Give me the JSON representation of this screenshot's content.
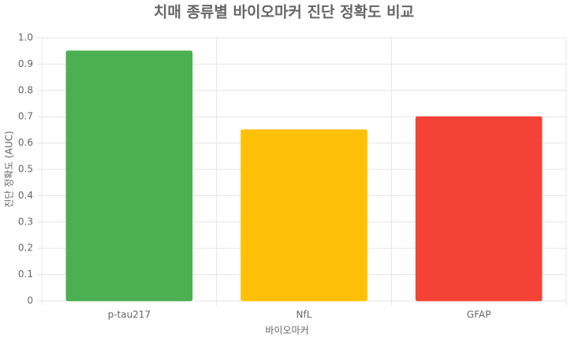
{
  "chart_data": {
    "type": "bar",
    "title": "치매 종류별 바이오마커 진단 정확도 비교",
    "x_label": "바이오마커",
    "y_label": "진단 정확도 (AUC)",
    "categories": [
      "p-tau217",
      "NfL",
      "GFAP"
    ],
    "values": [
      0.95,
      0.65,
      0.7
    ],
    "colors": [
      "#4caf50",
      "#ffc107",
      "#f44336"
    ],
    "ylim": [
      0,
      1
    ],
    "yticks": [
      0,
      0.1,
      0.2,
      0.3,
      0.4,
      0.5,
      0.6,
      0.7,
      0.8,
      0.9,
      {
        "value": 1,
        "label": "1.0"
      }
    ],
    "grid": true
  }
}
